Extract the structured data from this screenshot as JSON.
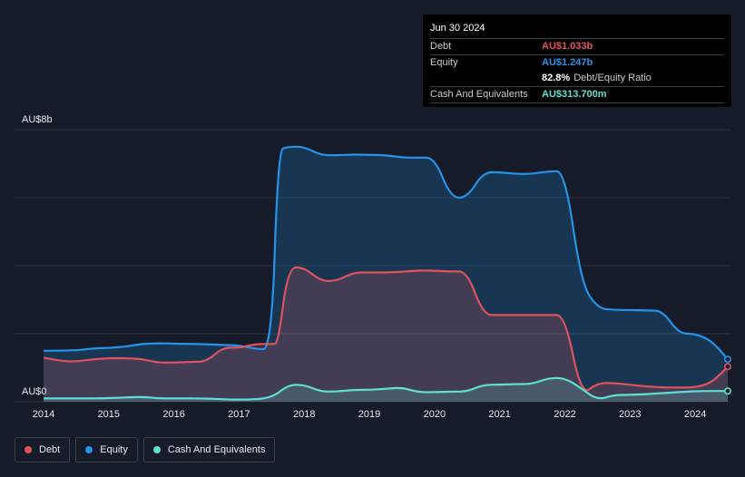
{
  "tooltip": {
    "date": "Jun 30 2024",
    "debt_label": "Debt",
    "debt_value": "AU$1.033b",
    "equity_label": "Equity",
    "equity_value": "AU$1.247b",
    "ratio_value": "82.8%",
    "ratio_label": "Debt/Equity Ratio",
    "cash_label": "Cash And Equivalents",
    "cash_value": "AU$313.700m"
  },
  "legend": {
    "debt": "Debt",
    "equity": "Equity",
    "cash": "Cash And Equivalents"
  },
  "colors": {
    "debt": "#e0525e",
    "equity": "#2394e8",
    "cash": "#5fe0d0",
    "background": "#151b28"
  },
  "chart_data": {
    "type": "area",
    "y_top_label": "AU$8b",
    "y_bottom_label": "AU$0",
    "ylim": [
      0,
      8
    ],
    "xlim": [
      2014,
      2024.5
    ],
    "x_ticks": [
      "2014",
      "2015",
      "2016",
      "2017",
      "2018",
      "2019",
      "2020",
      "2021",
      "2022",
      "2023",
      "2024"
    ],
    "gridlines": true,
    "series": [
      {
        "name": "Equity",
        "x": [
          2014.0,
          2014.5,
          2014.75,
          2015.0,
          2015.25,
          2015.5,
          2015.75,
          2016.0,
          2016.25,
          2016.5,
          2016.75,
          2017.0,
          2017.25,
          2017.5,
          2017.6,
          2017.75,
          2018.0,
          2018.25,
          2018.5,
          2018.75,
          2019.0,
          2019.25,
          2019.5,
          2019.75,
          2020.0,
          2020.25,
          2020.5,
          2020.75,
          2021.0,
          2021.25,
          2021.5,
          2021.75,
          2022.0,
          2022.25,
          2022.5,
          2022.75,
          2023.0,
          2023.25,
          2023.5,
          2023.75,
          2024.0,
          2024.25,
          2024.5
        ],
        "values": [
          1.5,
          1.51,
          1.57,
          1.58,
          1.62,
          1.7,
          1.72,
          1.71,
          1.7,
          1.69,
          1.67,
          1.66,
          1.55,
          1.55,
          7.4,
          7.5,
          7.5,
          7.25,
          7.25,
          7.27,
          7.26,
          7.25,
          7.18,
          7.18,
          7.18,
          6.0,
          6.0,
          6.75,
          6.75,
          6.7,
          6.7,
          6.78,
          6.78,
          3.5,
          2.75,
          2.7,
          2.7,
          2.68,
          2.68,
          2.0,
          2.0,
          1.8,
          1.247
        ]
      },
      {
        "name": "Debt",
        "x": [
          2014.0,
          2014.25,
          2014.5,
          2014.75,
          2015.0,
          2015.25,
          2015.5,
          2015.75,
          2016.0,
          2016.25,
          2016.5,
          2016.75,
          2017.0,
          2017.25,
          2017.5,
          2017.6,
          2017.75,
          2018.0,
          2018.25,
          2018.5,
          2018.75,
          2019.0,
          2019.25,
          2019.5,
          2019.75,
          2020.0,
          2020.25,
          2020.5,
          2020.75,
          2021.0,
          2021.25,
          2021.5,
          2021.75,
          2022.0,
          2022.25,
          2022.5,
          2022.75,
          2023.0,
          2023.25,
          2023.5,
          2023.75,
          2024.0,
          2024.25,
          2024.5
        ],
        "values": [
          1.3,
          1.2,
          1.18,
          1.25,
          1.28,
          1.28,
          1.26,
          1.15,
          1.15,
          1.17,
          1.18,
          1.6,
          1.58,
          1.7,
          1.7,
          1.7,
          3.95,
          3.95,
          3.55,
          3.55,
          3.8,
          3.8,
          3.8,
          3.82,
          3.86,
          3.85,
          3.83,
          3.83,
          2.55,
          2.55,
          2.55,
          2.55,
          2.55,
          2.55,
          0.18,
          0.55,
          0.55,
          0.5,
          0.45,
          0.42,
          0.42,
          0.42,
          0.55,
          1.033
        ]
      },
      {
        "name": "Cash And Equivalents",
        "x": [
          2014.0,
          2014.5,
          2015.0,
          2015.5,
          2015.75,
          2016.0,
          2016.5,
          2017.0,
          2017.5,
          2017.75,
          2018.0,
          2018.25,
          2018.5,
          2018.75,
          2019.0,
          2019.25,
          2019.5,
          2019.75,
          2020.0,
          2020.25,
          2020.5,
          2020.75,
          2021.0,
          2021.25,
          2021.5,
          2021.75,
          2022.0,
          2022.25,
          2022.5,
          2022.75,
          2023.0,
          2023.5,
          2024.0,
          2024.5
        ],
        "values": [
          0.1,
          0.1,
          0.1,
          0.15,
          0.1,
          0.1,
          0.1,
          0.05,
          0.1,
          0.5,
          0.5,
          0.3,
          0.3,
          0.35,
          0.35,
          0.38,
          0.42,
          0.28,
          0.28,
          0.3,
          0.3,
          0.5,
          0.5,
          0.52,
          0.52,
          0.7,
          0.7,
          0.4,
          0.05,
          0.2,
          0.2,
          0.25,
          0.3137,
          0.3137
        ]
      }
    ]
  }
}
